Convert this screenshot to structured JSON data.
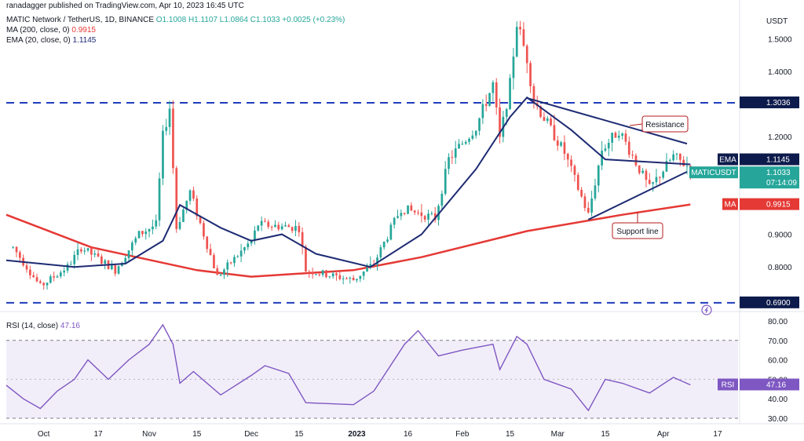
{
  "header": {
    "attribution": "ranadagger published on TradingView.com, Apr 10, 2023 16:45 UTC",
    "symbol": "MATIC Network / TetherUS, 1D, BINANCE",
    "ohlc": "O1.1008 H1.1107 L1.0864 C1.1033 +0.0025 (+0.23%)",
    "ma_label": "MA (200, close, 0)",
    "ma_value": "0.9915",
    "ema_label": "EMA (20, close, 0)",
    "ema_value": "1.1145",
    "rsi_label": "RSI (14, close)",
    "rsi_value": "47.16"
  },
  "colors": {
    "up": "#26a69a",
    "down": "#ef5350",
    "ema": "#1e2b73",
    "ma": "#e53935",
    "rsi": "#7e57c2",
    "level": "#1f3dbd",
    "trendline": "#1e2b73",
    "annotation": "#b71c1c",
    "price_badge": "#26a69a",
    "level_badge": "#0d1b4c"
  },
  "chart_data": [
    {
      "type": "candlestick",
      "title": "MATIC Network / TetherUS, 1D, BINANCE",
      "ylabel": "USDT",
      "ylim": [
        0.68,
        1.59
      ],
      "y_ticks": [
        0.8,
        0.9,
        1.2,
        1.4,
        1.5
      ],
      "x_tick_labels": [
        "Oct",
        "17",
        "Nov",
        "15",
        "Dec",
        "15",
        "2023",
        "16",
        "Feb",
        "15",
        "Mar",
        "15",
        "Apr",
        "17"
      ],
      "x_tick_dates": [
        "2022-10-01",
        "2022-10-17",
        "2022-11-01",
        "2022-11-15",
        "2022-12-01",
        "2022-12-15",
        "2023-01-01",
        "2023-01-16",
        "2023-02-01",
        "2023-02-15",
        "2023-03-01",
        "2023-03-15",
        "2023-04-01",
        "2023-04-17"
      ],
      "x_range": [
        "2022-09-20",
        "2023-04-23"
      ],
      "grid": false,
      "horizontal_levels": [
        {
          "value": 1.3036,
          "label": "1.3036",
          "style": "dashed"
        },
        {
          "value": 0.69,
          "label": "0.6900",
          "style": "dashed"
        }
      ],
      "price_badges": [
        {
          "label": "EMA",
          "value": "1.1145"
        },
        {
          "label": "MATICUSDT",
          "value": "1.1033",
          "countdown": "07:14:09"
        },
        {
          "label": "MA",
          "value": "0.9915"
        }
      ],
      "annotations": [
        {
          "text": "Resistance"
        },
        {
          "text": "Support line"
        }
      ],
      "trendlines": [
        {
          "name": "Resistance",
          "points": [
            [
              "2023-02-20",
              1.318
            ],
            [
              "2023-04-08",
              1.178
            ]
          ]
        },
        {
          "name": "Support line",
          "points": [
            [
              "2023-03-10",
              0.945
            ],
            [
              "2023-04-08",
              1.092
            ]
          ]
        }
      ],
      "anchors": [
        [
          "2022-09-22",
          0.86
        ],
        [
          "2022-09-30",
          0.74
        ],
        [
          "2022-10-08",
          0.8
        ],
        [
          "2022-10-12",
          0.86
        ],
        [
          "2022-10-22",
          0.79
        ],
        [
          "2022-10-29",
          0.9
        ],
        [
          "2022-11-03",
          0.93
        ],
        [
          "2022-11-05",
          1.2
        ],
        [
          "2022-11-07",
          1.29
        ],
        [
          "2022-11-09",
          0.92
        ],
        [
          "2022-11-13",
          1.03
        ],
        [
          "2022-11-21",
          0.77
        ],
        [
          "2022-12-01",
          0.88
        ],
        [
          "2022-12-03",
          0.93
        ],
        [
          "2022-12-15",
          0.92
        ],
        [
          "2022-12-17",
          0.79
        ],
        [
          "2022-12-31",
          0.76
        ],
        [
          "2023-01-06",
          0.81
        ],
        [
          "2023-01-14",
          0.98
        ],
        [
          "2023-01-24",
          0.95
        ],
        [
          "2023-01-28",
          1.13
        ],
        [
          "2023-02-05",
          1.23
        ],
        [
          "2023-02-10",
          1.36
        ],
        [
          "2023-02-12",
          1.19
        ],
        [
          "2023-02-15",
          1.36
        ],
        [
          "2023-02-17",
          1.55
        ],
        [
          "2023-02-20",
          1.44
        ],
        [
          "2023-02-22",
          1.31
        ],
        [
          "2023-03-03",
          1.15
        ],
        [
          "2023-03-10",
          0.96
        ],
        [
          "2023-03-14",
          1.16
        ],
        [
          "2023-03-19",
          1.22
        ],
        [
          "2023-03-28",
          1.04
        ],
        [
          "2023-04-04",
          1.14
        ],
        [
          "2023-04-09",
          1.103
        ]
      ],
      "ema_20": [
        [
          "2022-09-20",
          0.82
        ],
        [
          "2022-10-10",
          0.8
        ],
        [
          "2022-10-25",
          0.81
        ],
        [
          "2022-11-05",
          0.88
        ],
        [
          "2022-11-10",
          0.99
        ],
        [
          "2022-11-22",
          0.92
        ],
        [
          "2022-12-01",
          0.88
        ],
        [
          "2022-12-10",
          0.9
        ],
        [
          "2022-12-20",
          0.84
        ],
        [
          "2023-01-05",
          0.8
        ],
        [
          "2023-01-20",
          0.9
        ],
        [
          "2023-02-05",
          1.1
        ],
        [
          "2023-02-15",
          1.26
        ],
        [
          "2023-02-20",
          1.32
        ],
        [
          "2023-03-05",
          1.22
        ],
        [
          "2023-03-15",
          1.13
        ],
        [
          "2023-04-09",
          1.1145
        ]
      ],
      "ma_200": [
        [
          "2022-09-20",
          0.96
        ],
        [
          "2022-10-15",
          0.86
        ],
        [
          "2022-11-15",
          0.79
        ],
        [
          "2022-12-01",
          0.77
        ],
        [
          "2022-12-31",
          0.79
        ],
        [
          "2023-01-20",
          0.83
        ],
        [
          "2023-02-20",
          0.91
        ],
        [
          "2023-03-20",
          0.96
        ],
        [
          "2023-04-09",
          0.9915
        ]
      ]
    },
    {
      "type": "line",
      "title": "RSI (14, close)",
      "ylim": [
        28,
        82
      ],
      "y_ticks": [
        30,
        40,
        50,
        60,
        70,
        80
      ],
      "band": [
        30,
        70
      ],
      "series": [
        {
          "name": "RSI (14, close)",
          "points": [
            [
              "2022-09-20",
              47
            ],
            [
              "2022-09-25",
              40
            ],
            [
              "2022-09-30",
              35
            ],
            [
              "2022-10-05",
              44
            ],
            [
              "2022-10-10",
              50
            ],
            [
              "2022-10-14",
              60
            ],
            [
              "2022-10-20",
              50
            ],
            [
              "2022-10-26",
              60
            ],
            [
              "2022-11-01",
              68
            ],
            [
              "2022-11-05",
              78
            ],
            [
              "2022-11-08",
              68
            ],
            [
              "2022-11-10",
              48
            ],
            [
              "2022-11-14",
              54
            ],
            [
              "2022-11-22",
              42
            ],
            [
              "2022-12-01",
              52
            ],
            [
              "2022-12-05",
              57
            ],
            [
              "2022-12-12",
              53
            ],
            [
              "2022-12-17",
              38
            ],
            [
              "2022-12-31",
              37
            ],
            [
              "2023-01-06",
              44
            ],
            [
              "2023-01-15",
              68
            ],
            [
              "2023-01-19",
              75
            ],
            [
              "2023-01-25",
              62
            ],
            [
              "2023-02-01",
              65
            ],
            [
              "2023-02-10",
              68
            ],
            [
              "2023-02-12",
              55
            ],
            [
              "2023-02-17",
              72
            ],
            [
              "2023-02-20",
              68
            ],
            [
              "2023-02-25",
              50
            ],
            [
              "2023-03-05",
              45
            ],
            [
              "2023-03-10",
              34
            ],
            [
              "2023-03-15",
              50
            ],
            [
              "2023-03-20",
              48
            ],
            [
              "2023-03-28",
              43
            ],
            [
              "2023-04-04",
              51
            ],
            [
              "2023-04-09",
              47.16
            ]
          ]
        }
      ]
    }
  ]
}
